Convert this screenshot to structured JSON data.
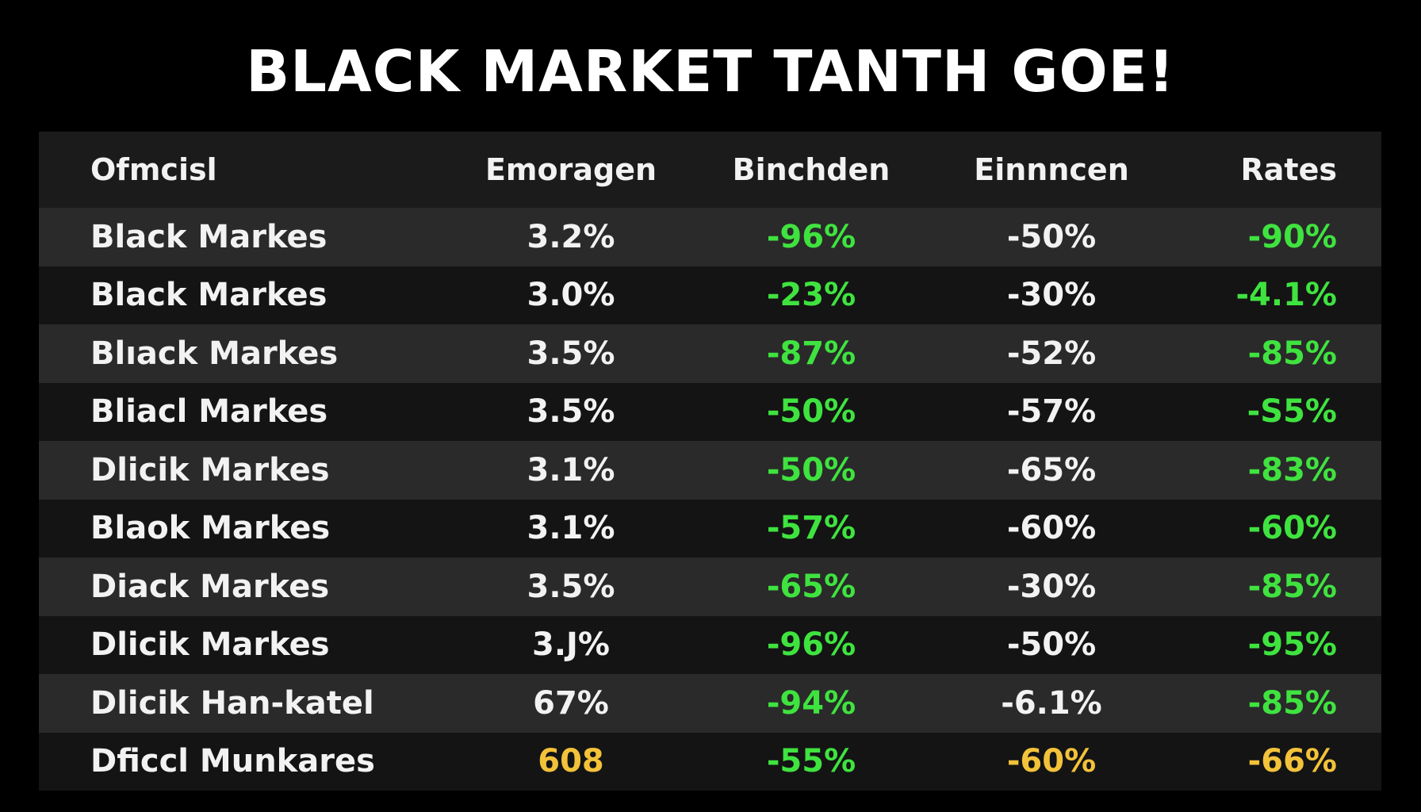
{
  "header": {
    "title": "BLACK MARKET TANTH GOE!"
  },
  "table": {
    "columns": [
      "Ofmcisl",
      "Emoragen",
      "Binchden",
      "Einnncen",
      "Rates"
    ],
    "rows": [
      [
        "Black Markes",
        "3.2%",
        "-96%",
        "-50%",
        "-90%"
      ],
      [
        "Black Markes",
        "3.0%",
        "-23%",
        "-30%",
        "-4.1%"
      ],
      [
        "Blıack Markes",
        "3.5%",
        "-87%",
        "-52%",
        "-85%"
      ],
      [
        "Bliacl Markes",
        "3.5%",
        "-50%",
        "-57%",
        "-S5%"
      ],
      [
        "Dlicik Markes",
        "3.1%",
        "-50%",
        "-65%",
        "-83%"
      ],
      [
        "Blaok Markes",
        "3.1%",
        "-57%",
        "-60%",
        "-60%"
      ],
      [
        "Diack Markes",
        "3.5%",
        "-65%",
        "-30%",
        "-85%"
      ],
      [
        "Dlicik Markes",
        "3.J%",
        "-96%",
        "-50%",
        "-95%"
      ],
      [
        "Dlicik Han-katel",
        "67%",
        "-94%",
        "-6.1%",
        "-85%"
      ],
      [
        "Dficcl Munkares",
        "608",
        "-55%",
        "-60%",
        "-66%"
      ]
    ]
  }
}
